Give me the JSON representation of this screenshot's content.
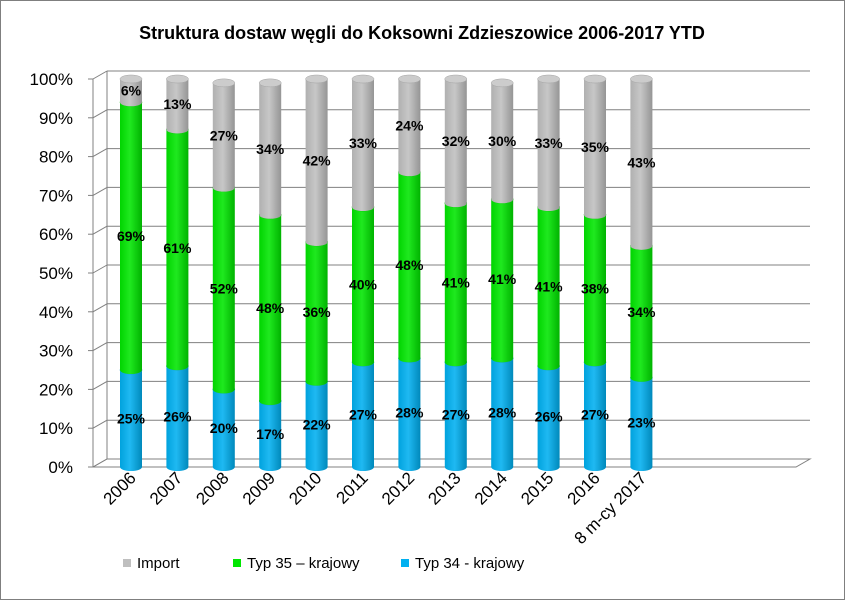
{
  "chart_data": {
    "type": "bar",
    "stacked": true,
    "percent_stacked": true,
    "three_d_cylinder": true,
    "title": "Struktura dostaw węgli do Koksowni Zdzieszowice 2006-2017 YTD",
    "categories": [
      "2006",
      "2007",
      "2008",
      "2009",
      "2010",
      "2011",
      "2012",
      "2013",
      "2014",
      "2015",
      "2016",
      "8 m-cy 2017"
    ],
    "y_ticks": [
      "0%",
      "10%",
      "20%",
      "30%",
      "40%",
      "50%",
      "60%",
      "70%",
      "80%",
      "90%",
      "100%"
    ],
    "ylim": [
      0,
      100
    ],
    "grid": true,
    "legend_position": "bottom",
    "series": [
      {
        "name": "Typ 34 - krajowy",
        "color": "#00b0f0",
        "values": [
          25,
          26,
          20,
          17,
          22,
          27,
          28,
          27,
          28,
          26,
          27,
          23
        ],
        "labels": [
          "25%",
          "26%",
          "20%",
          "17%",
          "22%",
          "27%",
          "28%",
          "27%",
          "28%",
          "26%",
          "27%",
          "23%"
        ]
      },
      {
        "name": "Typ 35 – krajowy",
        "color": "#00e600",
        "values": [
          69,
          61,
          52,
          48,
          36,
          40,
          48,
          41,
          41,
          41,
          38,
          34
        ],
        "labels": [
          "69%",
          "61%",
          "52%",
          "48%",
          "36%",
          "40%",
          "48%",
          "41%",
          "41%",
          "41%",
          "38%",
          "34%"
        ]
      },
      {
        "name": "Import",
        "color": "#bfbfbf",
        "values": [
          6,
          13,
          27,
          34,
          42,
          33,
          24,
          32,
          30,
          33,
          35,
          43
        ],
        "labels": [
          "6%",
          "13%",
          "27%",
          "34%",
          "42%",
          "33%",
          "24%",
          "32%",
          "30%",
          "33%",
          "35%",
          "43%"
        ]
      }
    ],
    "legend_order": [
      "Import",
      "Typ 35 – krajowy",
      "Typ 34 - krajowy"
    ]
  }
}
